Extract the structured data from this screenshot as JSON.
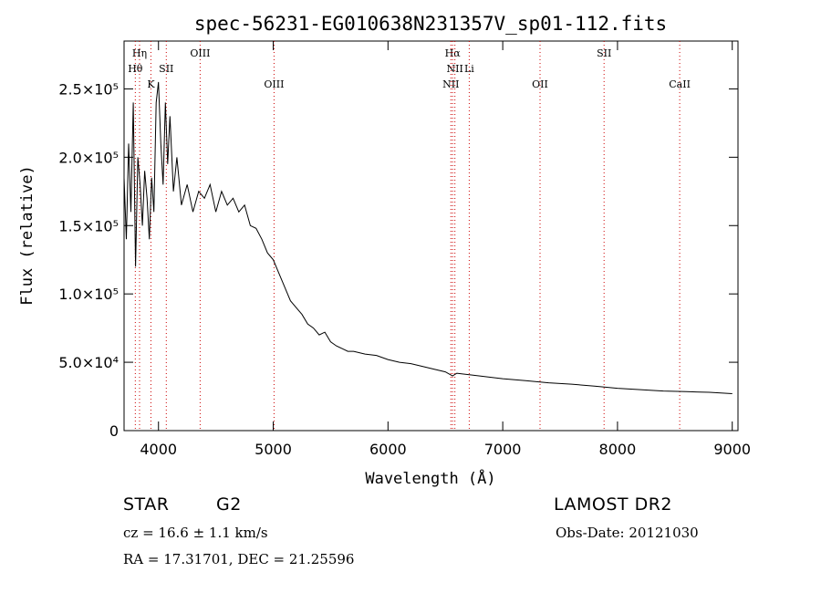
{
  "chart_data": {
    "type": "line",
    "title": "spec-56231-EG010638N231357V_sp01-112.fits",
    "xlabel": "Wavelength (Å)",
    "ylabel": "Flux (relative)",
    "xlim": [
      3700,
      9050
    ],
    "ylim": [
      0,
      285000
    ],
    "xticks": [
      {
        "value": 4000,
        "label": "4000"
      },
      {
        "value": 5000,
        "label": "5000"
      },
      {
        "value": 6000,
        "label": "6000"
      },
      {
        "value": 7000,
        "label": "7000"
      },
      {
        "value": 8000,
        "label": "8000"
      },
      {
        "value": 9000,
        "label": "9000"
      }
    ],
    "yticks": [
      {
        "value": 0,
        "label": "0"
      },
      {
        "value": 50000,
        "label": "5.0×10⁴"
      },
      {
        "value": 100000,
        "label": "1.0×10⁵"
      },
      {
        "value": 150000,
        "label": "1.5×10⁵"
      },
      {
        "value": 200000,
        "label": "2.0×10⁵"
      },
      {
        "value": 250000,
        "label": "2.5×10⁵"
      }
    ],
    "line_color": "#000000",
    "marker_color": "#cc0000",
    "series": [
      {
        "x": [
          3700,
          3720,
          3740,
          3760,
          3780,
          3800,
          3820,
          3840,
          3860,
          3880,
          3900,
          3920,
          3940,
          3960,
          3980,
          4000,
          4020,
          4040,
          4060,
          4080,
          4100,
          4130,
          4160,
          4200,
          4250,
          4300,
          4350,
          4400,
          4450,
          4500,
          4550,
          4600,
          4650,
          4700,
          4750,
          4800,
          4850,
          4900,
          4950,
          5000,
          5050,
          5100,
          5150,
          5200,
          5250,
          5300,
          5350,
          5400,
          5450,
          5500,
          5550,
          5600,
          5650,
          5700,
          5800,
          5900,
          6000,
          6100,
          6200,
          6300,
          6400,
          6500,
          6563,
          6600,
          6700,
          6800,
          6900,
          7000,
          7200,
          7400,
          7600,
          7800,
          8000,
          8200,
          8400,
          8600,
          8800,
          9000
        ],
        "y": [
          185000,
          140000,
          210000,
          160000,
          240000,
          120000,
          200000,
          180000,
          150000,
          190000,
          170000,
          140000,
          185000,
          160000,
          240000,
          255000,
          210000,
          180000,
          240000,
          195000,
          230000,
          175000,
          200000,
          165000,
          180000,
          160000,
          175000,
          170000,
          180000,
          160000,
          175000,
          165000,
          170000,
          160000,
          165000,
          150000,
          148000,
          140000,
          130000,
          125000,
          115000,
          105000,
          95000,
          90000,
          85000,
          78000,
          75000,
          70000,
          72000,
          65000,
          62000,
          60000,
          58000,
          58000,
          56000,
          55000,
          52000,
          50000,
          49000,
          47000,
          45000,
          43000,
          40000,
          42000,
          41000,
          40000,
          39000,
          38000,
          36500,
          35000,
          34000,
          32500,
          31000,
          30000,
          29000,
          28500,
          28000,
          27000
        ]
      }
    ],
    "lines": [
      {
        "label": "Hη",
        "x": 3835,
        "row": 0
      },
      {
        "label": "Hθ",
        "x": 3798,
        "row": 1
      },
      {
        "label": "K",
        "x": 3934,
        "row": 2
      },
      {
        "label": "SII",
        "x": 4068,
        "row": 1
      },
      {
        "label": "OIII",
        "x": 4363,
        "row": 0
      },
      {
        "label": "OIII",
        "x": 5007,
        "row": 2
      },
      {
        "label": "Hα",
        "x": 6563,
        "row": 0
      },
      {
        "label": "NII",
        "x": 6583,
        "row": 1
      },
      {
        "label": "Li",
        "x": 6708,
        "row": 1
      },
      {
        "label": "NII",
        "x": 6548,
        "row": 2
      },
      {
        "label": "OII",
        "x": 7325,
        "row": 2
      },
      {
        "label": "SII",
        "x": 7883,
        "row": 0
      },
      {
        "label": "CaII",
        "x": 8542,
        "row": 2
      }
    ]
  },
  "info": {
    "class": "STAR",
    "subclass": "G2",
    "survey": "LAMOST DR2",
    "cz": "cz = 16.6 ± 1.1 km/s",
    "obs_date": "Obs-Date: 20121030",
    "radec": "RA =  17.31701, DEC =  21.25596"
  }
}
